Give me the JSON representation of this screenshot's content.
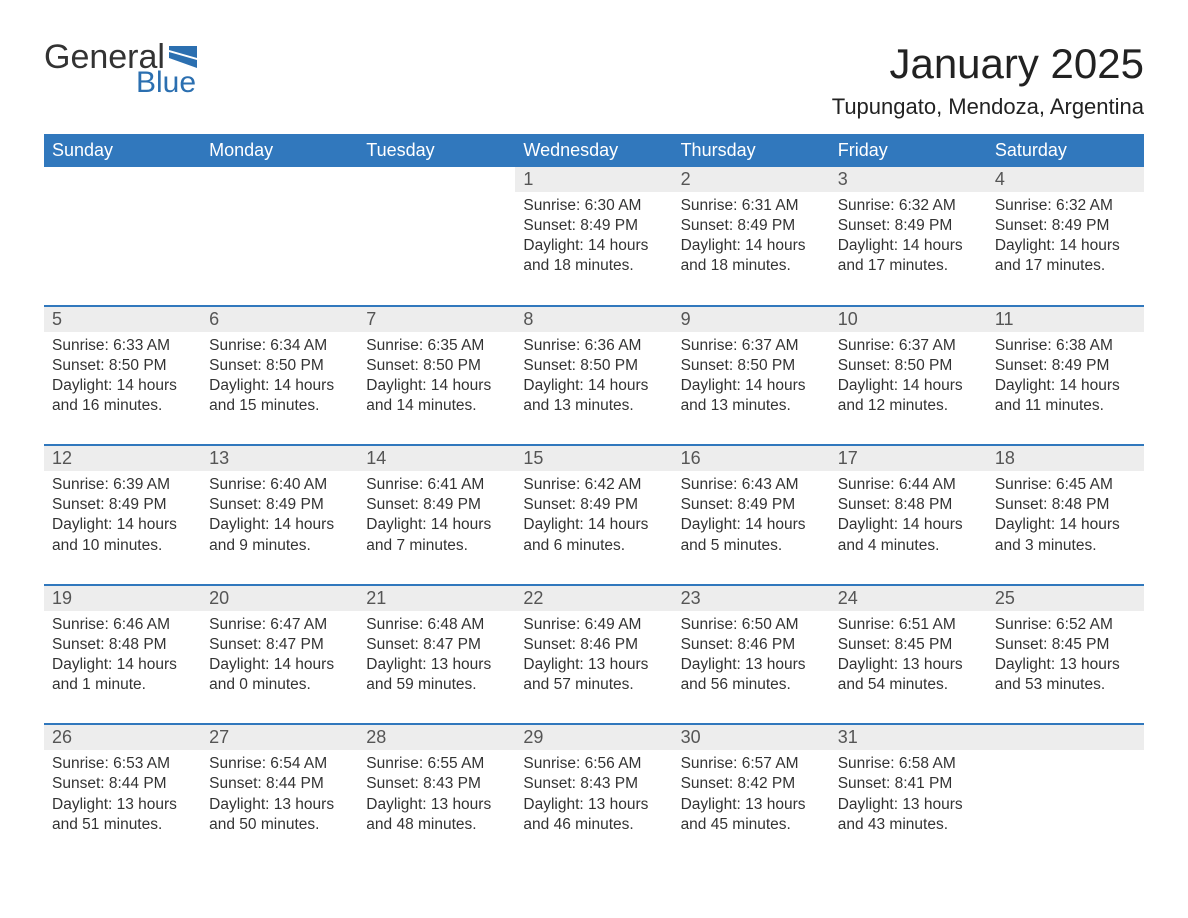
{
  "brand": {
    "word1": "General",
    "word2": "Blue",
    "brand_color": "#2b6fb0"
  },
  "title": "January 2025",
  "location": "Tupungato, Mendoza, Argentina",
  "header_bg": "#3178bd",
  "header_fg": "#ffffff",
  "daynum_bg": "#ededed",
  "text_color": "#333333",
  "weekdays": [
    "Sunday",
    "Monday",
    "Tuesday",
    "Wednesday",
    "Thursday",
    "Friday",
    "Saturday"
  ],
  "weeks": [
    [
      null,
      null,
      null,
      {
        "n": "1",
        "sr": "Sunrise: 6:30 AM",
        "ss": "Sunset: 8:49 PM",
        "dl": "Daylight: 14 hours and 18 minutes."
      },
      {
        "n": "2",
        "sr": "Sunrise: 6:31 AM",
        "ss": "Sunset: 8:49 PM",
        "dl": "Daylight: 14 hours and 18 minutes."
      },
      {
        "n": "3",
        "sr": "Sunrise: 6:32 AM",
        "ss": "Sunset: 8:49 PM",
        "dl": "Daylight: 14 hours and 17 minutes."
      },
      {
        "n": "4",
        "sr": "Sunrise: 6:32 AM",
        "ss": "Sunset: 8:49 PM",
        "dl": "Daylight: 14 hours and 17 minutes."
      }
    ],
    [
      {
        "n": "5",
        "sr": "Sunrise: 6:33 AM",
        "ss": "Sunset: 8:50 PM",
        "dl": "Daylight: 14 hours and 16 minutes."
      },
      {
        "n": "6",
        "sr": "Sunrise: 6:34 AM",
        "ss": "Sunset: 8:50 PM",
        "dl": "Daylight: 14 hours and 15 minutes."
      },
      {
        "n": "7",
        "sr": "Sunrise: 6:35 AM",
        "ss": "Sunset: 8:50 PM",
        "dl": "Daylight: 14 hours and 14 minutes."
      },
      {
        "n": "8",
        "sr": "Sunrise: 6:36 AM",
        "ss": "Sunset: 8:50 PM",
        "dl": "Daylight: 14 hours and 13 minutes."
      },
      {
        "n": "9",
        "sr": "Sunrise: 6:37 AM",
        "ss": "Sunset: 8:50 PM",
        "dl": "Daylight: 14 hours and 13 minutes."
      },
      {
        "n": "10",
        "sr": "Sunrise: 6:37 AM",
        "ss": "Sunset: 8:50 PM",
        "dl": "Daylight: 14 hours and 12 minutes."
      },
      {
        "n": "11",
        "sr": "Sunrise: 6:38 AM",
        "ss": "Sunset: 8:49 PM",
        "dl": "Daylight: 14 hours and 11 minutes."
      }
    ],
    [
      {
        "n": "12",
        "sr": "Sunrise: 6:39 AM",
        "ss": "Sunset: 8:49 PM",
        "dl": "Daylight: 14 hours and 10 minutes."
      },
      {
        "n": "13",
        "sr": "Sunrise: 6:40 AM",
        "ss": "Sunset: 8:49 PM",
        "dl": "Daylight: 14 hours and 9 minutes."
      },
      {
        "n": "14",
        "sr": "Sunrise: 6:41 AM",
        "ss": "Sunset: 8:49 PM",
        "dl": "Daylight: 14 hours and 7 minutes."
      },
      {
        "n": "15",
        "sr": "Sunrise: 6:42 AM",
        "ss": "Sunset: 8:49 PM",
        "dl": "Daylight: 14 hours and 6 minutes."
      },
      {
        "n": "16",
        "sr": "Sunrise: 6:43 AM",
        "ss": "Sunset: 8:49 PM",
        "dl": "Daylight: 14 hours and 5 minutes."
      },
      {
        "n": "17",
        "sr": "Sunrise: 6:44 AM",
        "ss": "Sunset: 8:48 PM",
        "dl": "Daylight: 14 hours and 4 minutes."
      },
      {
        "n": "18",
        "sr": "Sunrise: 6:45 AM",
        "ss": "Sunset: 8:48 PM",
        "dl": "Daylight: 14 hours and 3 minutes."
      }
    ],
    [
      {
        "n": "19",
        "sr": "Sunrise: 6:46 AM",
        "ss": "Sunset: 8:48 PM",
        "dl": "Daylight: 14 hours and 1 minute."
      },
      {
        "n": "20",
        "sr": "Sunrise: 6:47 AM",
        "ss": "Sunset: 8:47 PM",
        "dl": "Daylight: 14 hours and 0 minutes."
      },
      {
        "n": "21",
        "sr": "Sunrise: 6:48 AM",
        "ss": "Sunset: 8:47 PM",
        "dl": "Daylight: 13 hours and 59 minutes."
      },
      {
        "n": "22",
        "sr": "Sunrise: 6:49 AM",
        "ss": "Sunset: 8:46 PM",
        "dl": "Daylight: 13 hours and 57 minutes."
      },
      {
        "n": "23",
        "sr": "Sunrise: 6:50 AM",
        "ss": "Sunset: 8:46 PM",
        "dl": "Daylight: 13 hours and 56 minutes."
      },
      {
        "n": "24",
        "sr": "Sunrise: 6:51 AM",
        "ss": "Sunset: 8:45 PM",
        "dl": "Daylight: 13 hours and 54 minutes."
      },
      {
        "n": "25",
        "sr": "Sunrise: 6:52 AM",
        "ss": "Sunset: 8:45 PM",
        "dl": "Daylight: 13 hours and 53 minutes."
      }
    ],
    [
      {
        "n": "26",
        "sr": "Sunrise: 6:53 AM",
        "ss": "Sunset: 8:44 PM",
        "dl": "Daylight: 13 hours and 51 minutes."
      },
      {
        "n": "27",
        "sr": "Sunrise: 6:54 AM",
        "ss": "Sunset: 8:44 PM",
        "dl": "Daylight: 13 hours and 50 minutes."
      },
      {
        "n": "28",
        "sr": "Sunrise: 6:55 AM",
        "ss": "Sunset: 8:43 PM",
        "dl": "Daylight: 13 hours and 48 minutes."
      },
      {
        "n": "29",
        "sr": "Sunrise: 6:56 AM",
        "ss": "Sunset: 8:43 PM",
        "dl": "Daylight: 13 hours and 46 minutes."
      },
      {
        "n": "30",
        "sr": "Sunrise: 6:57 AM",
        "ss": "Sunset: 8:42 PM",
        "dl": "Daylight: 13 hours and 45 minutes."
      },
      {
        "n": "31",
        "sr": "Sunrise: 6:58 AM",
        "ss": "Sunset: 8:41 PM",
        "dl": "Daylight: 13 hours and 43 minutes."
      },
      null
    ]
  ]
}
